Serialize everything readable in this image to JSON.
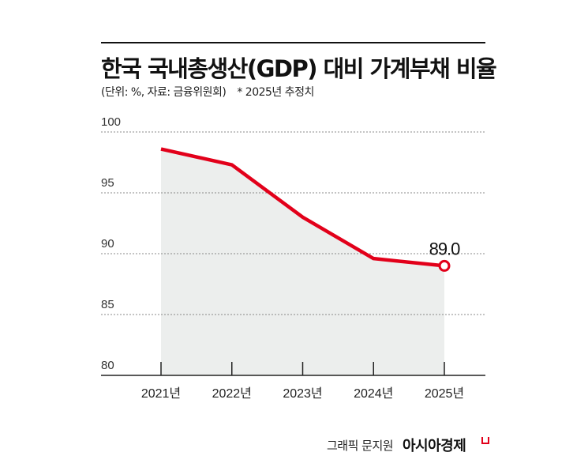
{
  "title": "한국 국내총생산(GDP) 대비 가계부채 비율",
  "subtitle": {
    "unit_source": "(단위: %, 자료: 금융위원회)",
    "note": "* 2025년 추정치"
  },
  "credit": "그래픽 문지원",
  "brand": "아시아경제",
  "colors": {
    "line": "#e2001a",
    "area": "#eceeed",
    "text": "#111111"
  },
  "chart_data": {
    "type": "line",
    "title": "한국 국내총생산(GDP) 대비 가계부채 비율",
    "xlabel": "",
    "ylabel": "",
    "categories": [
      "2021년",
      "2022년",
      "2023년",
      "2024년",
      "2025년"
    ],
    "values": [
      98.6,
      97.3,
      93.0,
      89.6,
      89.0
    ],
    "ylim": [
      80,
      100
    ],
    "yticks": [
      "80",
      "85",
      "90",
      "95",
      "100"
    ],
    "grid": true,
    "area_fill": true,
    "data_labels": [
      {
        "index": 4,
        "text": "89.0"
      }
    ]
  }
}
